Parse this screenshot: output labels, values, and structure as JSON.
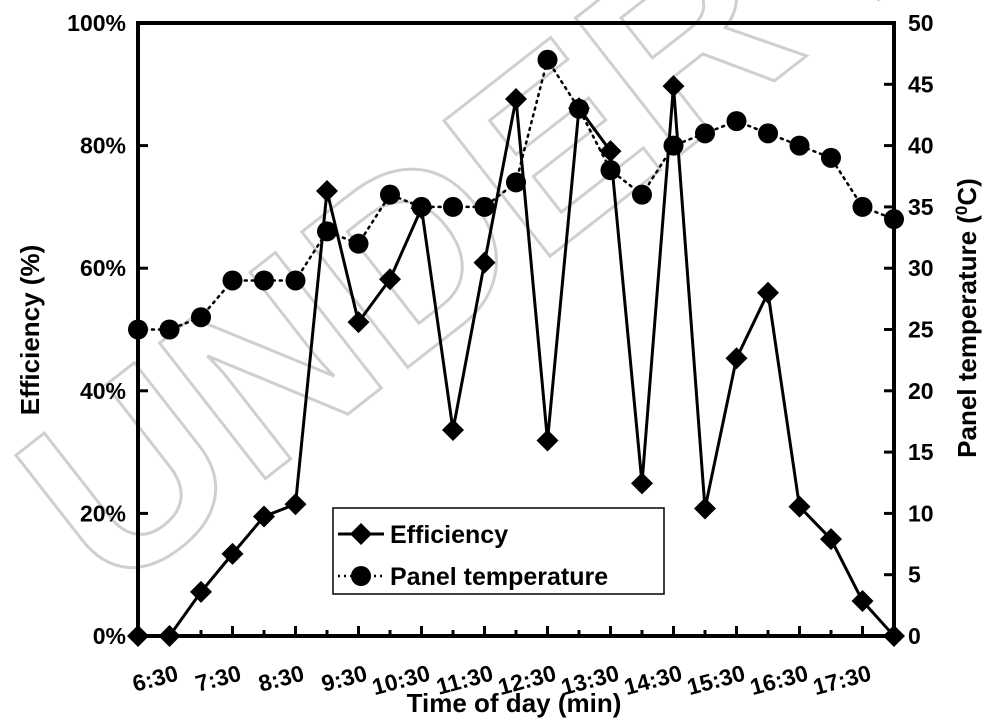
{
  "watermark": "UNDER PEER",
  "chart_data": {
    "type": "line",
    "xlabel": "Time of day (min)",
    "ylabel_left": "Efficiency (%)",
    "ylabel_right": "Panel temperature (°C)",
    "ylabel_right_parts": {
      "prefix": "Panel temperature (",
      "superscript": "0",
      "suffix": "C)"
    },
    "x_tick_labels": [
      "6:30",
      "7:30",
      "8:30",
      "9:30",
      "10:30",
      "11:30",
      "12:30",
      "13:30",
      "14:30",
      "15:30",
      "16:30",
      "17:30"
    ],
    "x_points": [
      "6:00",
      "6:30",
      "7:00",
      "7:30",
      "8:00",
      "8:30",
      "9:00",
      "9:30",
      "10:00",
      "10:30",
      "11:00",
      "11:30",
      "12:00",
      "12:30",
      "13:00",
      "13:30",
      "14:00",
      "14:30",
      "15:00",
      "15:30",
      "16:00",
      "16:30",
      "17:00",
      "17:30",
      "18:00"
    ],
    "y_left": {
      "min": 0,
      "max": 100,
      "ticks": [
        0,
        20,
        40,
        60,
        80,
        100
      ],
      "tick_labels": [
        "0%",
        "20%",
        "40%",
        "60%",
        "80%",
        "100%"
      ]
    },
    "y_right": {
      "min": 0,
      "max": 50,
      "ticks": [
        0,
        5,
        10,
        15,
        20,
        25,
        30,
        35,
        40,
        45,
        50
      ],
      "tick_labels": [
        "0",
        "5",
        "10",
        "15",
        "20",
        "25",
        "30",
        "35",
        "40",
        "45",
        "50"
      ]
    },
    "legend_position": "bottom-center",
    "grid": false,
    "series": [
      {
        "name": "Efficiency",
        "axis": "left",
        "marker": "diamond",
        "line_style": "solid",
        "color": "#000000",
        "values": [
          0,
          0,
          7.2,
          13.4,
          19.5,
          21.5,
          72.6,
          51.2,
          58.2,
          69.8,
          33.6,
          60.9,
          87.6,
          31.9,
          86.1,
          79.1,
          24.9,
          89.7,
          20.8,
          45.3,
          56.0,
          21.1,
          15.8,
          5.7,
          0
        ]
      },
      {
        "name": "Panel temperature",
        "axis": "right",
        "marker": "circle",
        "line_style": "dotted",
        "color": "#000000",
        "values": [
          25,
          25,
          26,
          29,
          29,
          29,
          33,
          32,
          36,
          35,
          35,
          35,
          37,
          47,
          43,
          38,
          36,
          40,
          41,
          42,
          41,
          40,
          39,
          35,
          34
        ]
      }
    ]
  }
}
